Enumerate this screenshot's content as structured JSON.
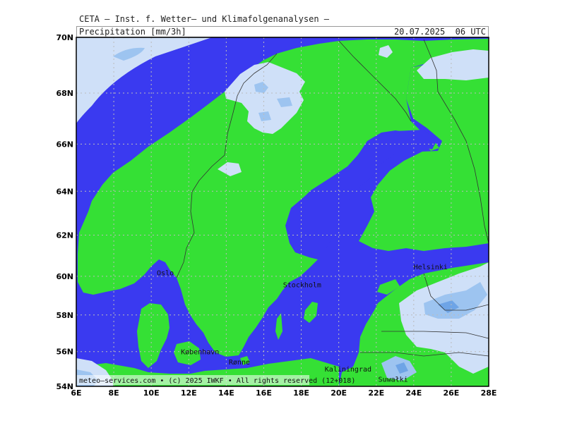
{
  "header": {
    "title": "CETA — Inst. f. Wetter— und Klimafolgenanalysen —",
    "parameter": "Precipitation [mm/3h]",
    "valid_time": "20.07.2025  06 UTC"
  },
  "map": {
    "lon_range": [
      6,
      28
    ],
    "lat_range": [
      54,
      70
    ],
    "lon_ticks": [
      "6E",
      "8E",
      "10E",
      "12E",
      "14E",
      "16E",
      "18E",
      "20E",
      "22E",
      "24E",
      "26E",
      "28E"
    ],
    "lat_ticks": [
      "54N",
      "56N",
      "58N",
      "60N",
      "62N",
      "64N",
      "66N",
      "68N",
      "70N"
    ],
    "colors": {
      "sea": "#3a3af0",
      "land": "#35e035",
      "precip_light": "#cfe0f8",
      "precip_medium": "#9dc4f0",
      "precip_heavy": "#6ea4e6",
      "grid": "#bbbbbb",
      "border": "#333333"
    },
    "cities": [
      {
        "name": "Oslo",
        "lon": 10.75,
        "lat": 59.9
      },
      {
        "name": "Stockholm",
        "lon": 18.05,
        "lat": 59.3
      },
      {
        "name": "Helsinki",
        "lon": 24.9,
        "lat": 60.2
      },
      {
        "name": "København",
        "lon": 12.6,
        "lat": 55.7
      },
      {
        "name": "Rønne",
        "lon": 14.7,
        "lat": 55.1
      },
      {
        "name": "Kaliningrad",
        "lon": 20.5,
        "lat": 54.7
      },
      {
        "name": "Suwałki",
        "lon": 22.9,
        "lat": 54.1
      }
    ]
  },
  "footer": {
    "credit": "meteo—services.com • (c) 2025 IWKF • All rights reserved (12+018)"
  }
}
